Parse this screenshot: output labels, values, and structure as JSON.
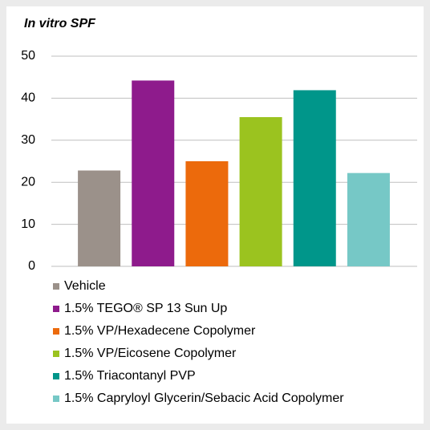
{
  "chart_data": {
    "type": "bar",
    "title": "In vitro SPF",
    "series": [
      {
        "name": "Vehicle",
        "color": "#9b918a",
        "values": [
          22.8
        ]
      },
      {
        "name": "1.5% TEGO® SP 13 Sun Up",
        "color": "#8e1b8c",
        "values": [
          44.2
        ]
      },
      {
        "name": "1.5% VP/Hexadecene Copolymer",
        "color": "#ec6a0c",
        "values": [
          25
        ]
      },
      {
        "name": "1.5% VP/Eicosene Copolymer",
        "color": "#9bc31f",
        "values": [
          35.5
        ]
      },
      {
        "name": "1.5% Triacontanyl PVP",
        "color": "#00968a",
        "values": [
          41.9
        ]
      },
      {
        "name": "1.5% Capryloyl Glycerin/Sebacic Acid Copolymer",
        "color": "#76c8c6",
        "values": [
          22.2
        ]
      }
    ],
    "ylim": [
      0,
      50
    ],
    "yticks": [
      0,
      10,
      20,
      30,
      40,
      50
    ],
    "grid": true,
    "legend": "bottom"
  }
}
